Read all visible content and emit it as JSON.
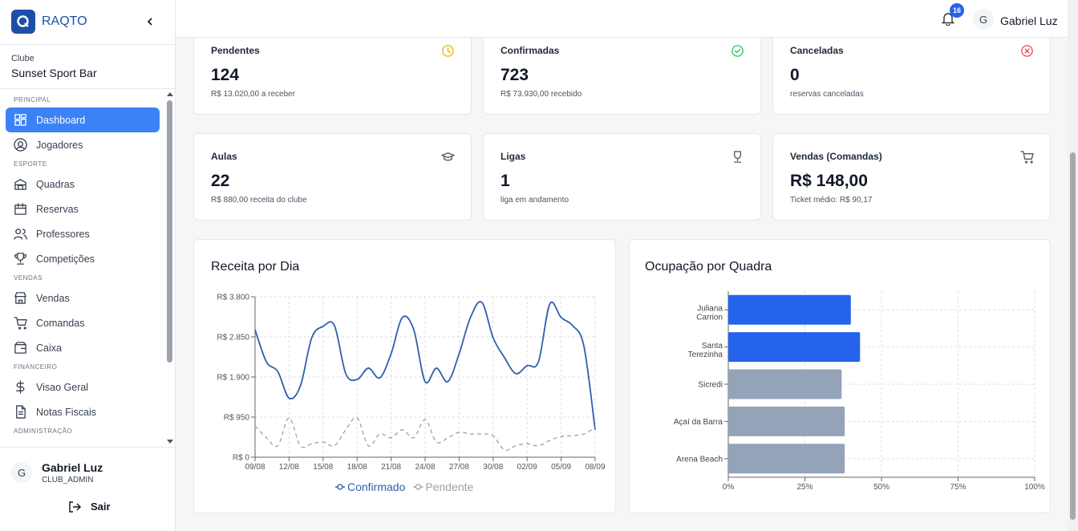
{
  "sidebar": {
    "brand": "RAQTO",
    "club_label": "Clube",
    "club_name": "Sunset Sport Bar",
    "sections": [
      {
        "title": "PRINCIPAL",
        "items": [
          {
            "label": "Dashboard",
            "active": true
          },
          {
            "label": "Jogadores"
          }
        ]
      },
      {
        "title": "ESPORTE",
        "items": [
          {
            "label": "Quadras"
          },
          {
            "label": "Reservas"
          },
          {
            "label": "Professores"
          },
          {
            "label": "Competições"
          }
        ]
      },
      {
        "title": "VENDAS",
        "items": [
          {
            "label": "Vendas"
          },
          {
            "label": "Comandas"
          },
          {
            "label": "Caixa"
          }
        ]
      },
      {
        "title": "FINANCEIRO",
        "items": [
          {
            "label": "Visao Geral"
          },
          {
            "label": "Notas Fiscais"
          }
        ]
      },
      {
        "title": "ADMINISTRAÇÃO",
        "items": []
      }
    ],
    "user": {
      "avatar": "G",
      "name": "Gabriel Luz",
      "role": "CLUB_ADMIN"
    },
    "logout": "Sair"
  },
  "header": {
    "notifications": "16",
    "avatar": "G",
    "user": "Gabriel Luz"
  },
  "cards": [
    {
      "title": "Pendentes",
      "value": "124",
      "subtitle": "R$ 13.020,00 a receber"
    },
    {
      "title": "Confirmadas",
      "value": "723",
      "subtitle": "R$ 73.930,00 recebido"
    },
    {
      "title": "Canceladas",
      "value": "0",
      "subtitle": "reservas canceladas"
    },
    {
      "title": "Aulas",
      "value": "22",
      "subtitle": "R$ 880,00 receita do clube"
    },
    {
      "title": "Ligas",
      "value": "1",
      "subtitle": "liga em andamento"
    },
    {
      "title": "Vendas (Comandas)",
      "value": "R$ 148,00",
      "subtitle": "Ticket médio: R$ 90,17"
    }
  ],
  "chart_data": [
    {
      "type": "line",
      "title": "Receita por Dia",
      "categories": [
        "09/08",
        null,
        null,
        "12/08",
        null,
        null,
        "15/08",
        null,
        null,
        "18/08",
        null,
        null,
        "21/08",
        null,
        null,
        "24/08",
        null,
        null,
        "27/08",
        null,
        null,
        "30/08",
        null,
        null,
        "02/09",
        null,
        null,
        "05/09",
        null,
        null,
        "08/09"
      ],
      "series": [
        {
          "name": "Confirmado",
          "color": "#2f5fad",
          "dash": false,
          "values": [
            3020,
            2260,
            2030,
            1400,
            1690,
            2830,
            3100,
            3120,
            1980,
            1840,
            2110,
            1880,
            2450,
            3310,
            3020,
            1790,
            2110,
            1790,
            2450,
            3310,
            3670,
            2830,
            2360,
            1980,
            2170,
            2260,
            3630,
            3310,
            3120,
            2640,
            650
          ]
        },
        {
          "name": "Pendente",
          "color": "#9aa1a9",
          "dash": true,
          "values": [
            740,
            460,
            270,
            930,
            270,
            320,
            360,
            270,
            650,
            930,
            270,
            550,
            460,
            650,
            460,
            890,
            360,
            460,
            590,
            550,
            550,
            510,
            170,
            270,
            320,
            270,
            400,
            490,
            510,
            550,
            700
          ]
        }
      ],
      "ylim": [
        0,
        3800
      ],
      "yticks": [
        {
          "value": 0,
          "label": "R$ 0"
        },
        {
          "value": 950,
          "label": "R$ 950"
        },
        {
          "value": 1900,
          "label": "R$ 1.900"
        },
        {
          "value": 2850,
          "label": "R$ 2.850"
        },
        {
          "value": 3800,
          "label": "R$ 3.800"
        }
      ],
      "grid": true,
      "legend": "bottom"
    },
    {
      "type": "hbar",
      "title": "Ocupação por Quadra",
      "categories": [
        "Juliana Carrion",
        "Santa Terezinha",
        "Sicredi",
        "Açaí da Barra",
        "Arena Beach"
      ],
      "values": [
        40,
        43,
        37,
        38,
        38
      ],
      "colors": [
        "#2563eb",
        "#2563eb",
        "#94a3b8",
        "#94a3b8",
        "#94a3b8"
      ],
      "xlim": [
        0,
        100
      ],
      "xticks": [
        {
          "value": 0,
          "label": "0%"
        },
        {
          "value": 25,
          "label": "25%"
        },
        {
          "value": 50,
          "label": "50%"
        },
        {
          "value": 75,
          "label": "75%"
        },
        {
          "value": 100,
          "label": "100%"
        }
      ],
      "grid": true
    }
  ]
}
